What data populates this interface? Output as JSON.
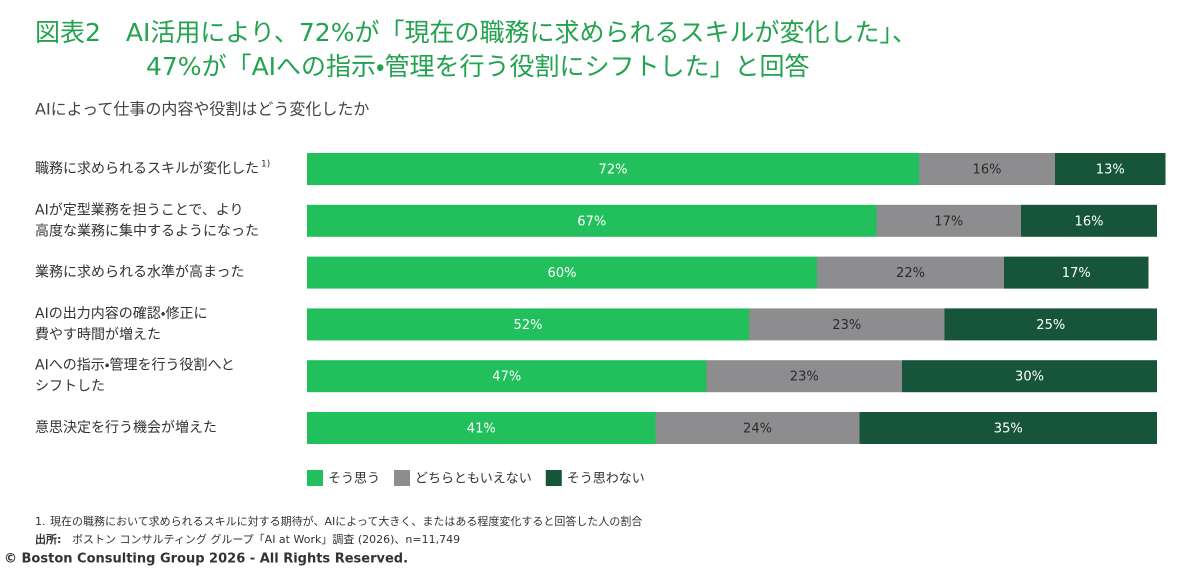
{
  "chart_data": {
    "type": "bar",
    "orientation": "horizontal",
    "stacked": true,
    "title": [
      "図表2　AI活用により、72%が「現在の職務に求められるスキルが変化した」、",
      "47%が「AIへの指示・管理を行う役割にシフトした」と回答"
    ],
    "subtitle": "AIによって仕事の内容や役割はどう変化したか",
    "categories": [
      [
        "職務に求められるスキルが変化した"
      ],
      [
        "AIが定型業務を担うことで、より",
        "高度な業務に集中するようになった"
      ],
      [
        "業務に求められる水準が高まった"
      ],
      [
        "AIの出力内容の確認・修正に",
        "費やす時間が増えた"
      ],
      [
        "AIへの指示・管理を行う役割へと",
        "シフトした"
      ],
      [
        "意思決定を行う機会が増えた"
      ]
    ],
    "category_superscripts": [
      "1)",
      null,
      null,
      null,
      null,
      null
    ],
    "series": [
      {
        "name": "そう思う",
        "color": "#22c05c",
        "label_color": "#ffffff",
        "values": [
          72,
          67,
          60,
          52,
          47,
          41
        ],
        "value_labels": [
          "72%",
          "67%",
          "60%",
          "52%",
          "47%",
          "41%"
        ]
      },
      {
        "name": "どちらともいえない",
        "color": "#8d8d90",
        "label_color": "#2b2b2b",
        "values": [
          16,
          17,
          22,
          23,
          23,
          24
        ],
        "value_labels": [
          "16%",
          "17%",
          "22%",
          "23%",
          "23%",
          "24%"
        ]
      },
      {
        "name": "そう思わない",
        "color": "#17553b",
        "label_color": "#ffffff",
        "values": [
          13,
          16,
          17,
          25,
          30,
          35
        ],
        "value_labels": [
          "13%",
          "16%",
          "17%",
          "25%",
          "30%",
          "35%"
        ]
      }
    ],
    "xlim": [
      0,
      100
    ],
    "footnotes": [
      {
        "label": "1.",
        "text": "現在の職務において求められるスキルに対する期待が、AIによって大きく、またはある程度変化すると回答した人の割合"
      },
      {
        "label": "出所:",
        "text": "ボストン コンサルティング グループ「AI at Work」調査 (2026)、n=11,749"
      }
    ],
    "copyright": "© Boston Consulting Group 2026 - All Rights Reserved."
  }
}
